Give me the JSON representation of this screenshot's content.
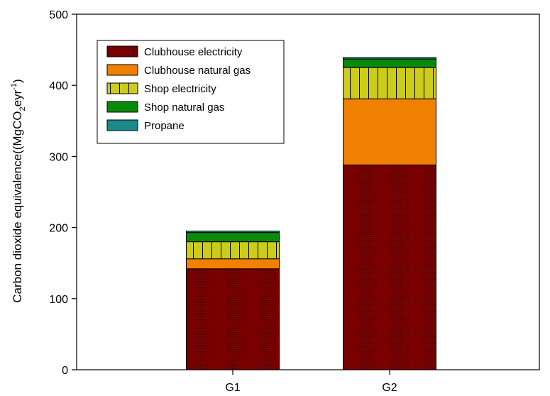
{
  "chart_data": {
    "type": "bar",
    "stacked": true,
    "categories": [
      "G1",
      "G2"
    ],
    "series": [
      {
        "name": "Clubhouse electricity",
        "values": [
          142,
          288
        ],
        "color": "#7a0000",
        "pattern": "dots"
      },
      {
        "name": "Clubhouse natural gas",
        "values": [
          14,
          93
        ],
        "color": "#f08000",
        "pattern": "solid"
      },
      {
        "name": "Shop electricity",
        "values": [
          24,
          44
        ],
        "color": "#cccc1a",
        "pattern": "vertical-lines"
      },
      {
        "name": "Shop natural gas",
        "values": [
          13,
          12
        ],
        "color": "#0a8a0a",
        "pattern": "solid"
      },
      {
        "name": "Propane",
        "values": [
          2,
          2
        ],
        "color": "#1a8a8a",
        "pattern": "solid"
      }
    ],
    "ylabel": {
      "prefix": "Carbon dioxide equivalence((MgCO",
      "sub": "2",
      "mid": "eyr",
      "sup": "-1",
      "suffix": ")"
    },
    "xlabel": "",
    "ylim": [
      0,
      500
    ],
    "yticks": [
      0,
      100,
      200,
      300,
      400,
      500
    ],
    "grid": false,
    "legend_position": "top-left"
  }
}
